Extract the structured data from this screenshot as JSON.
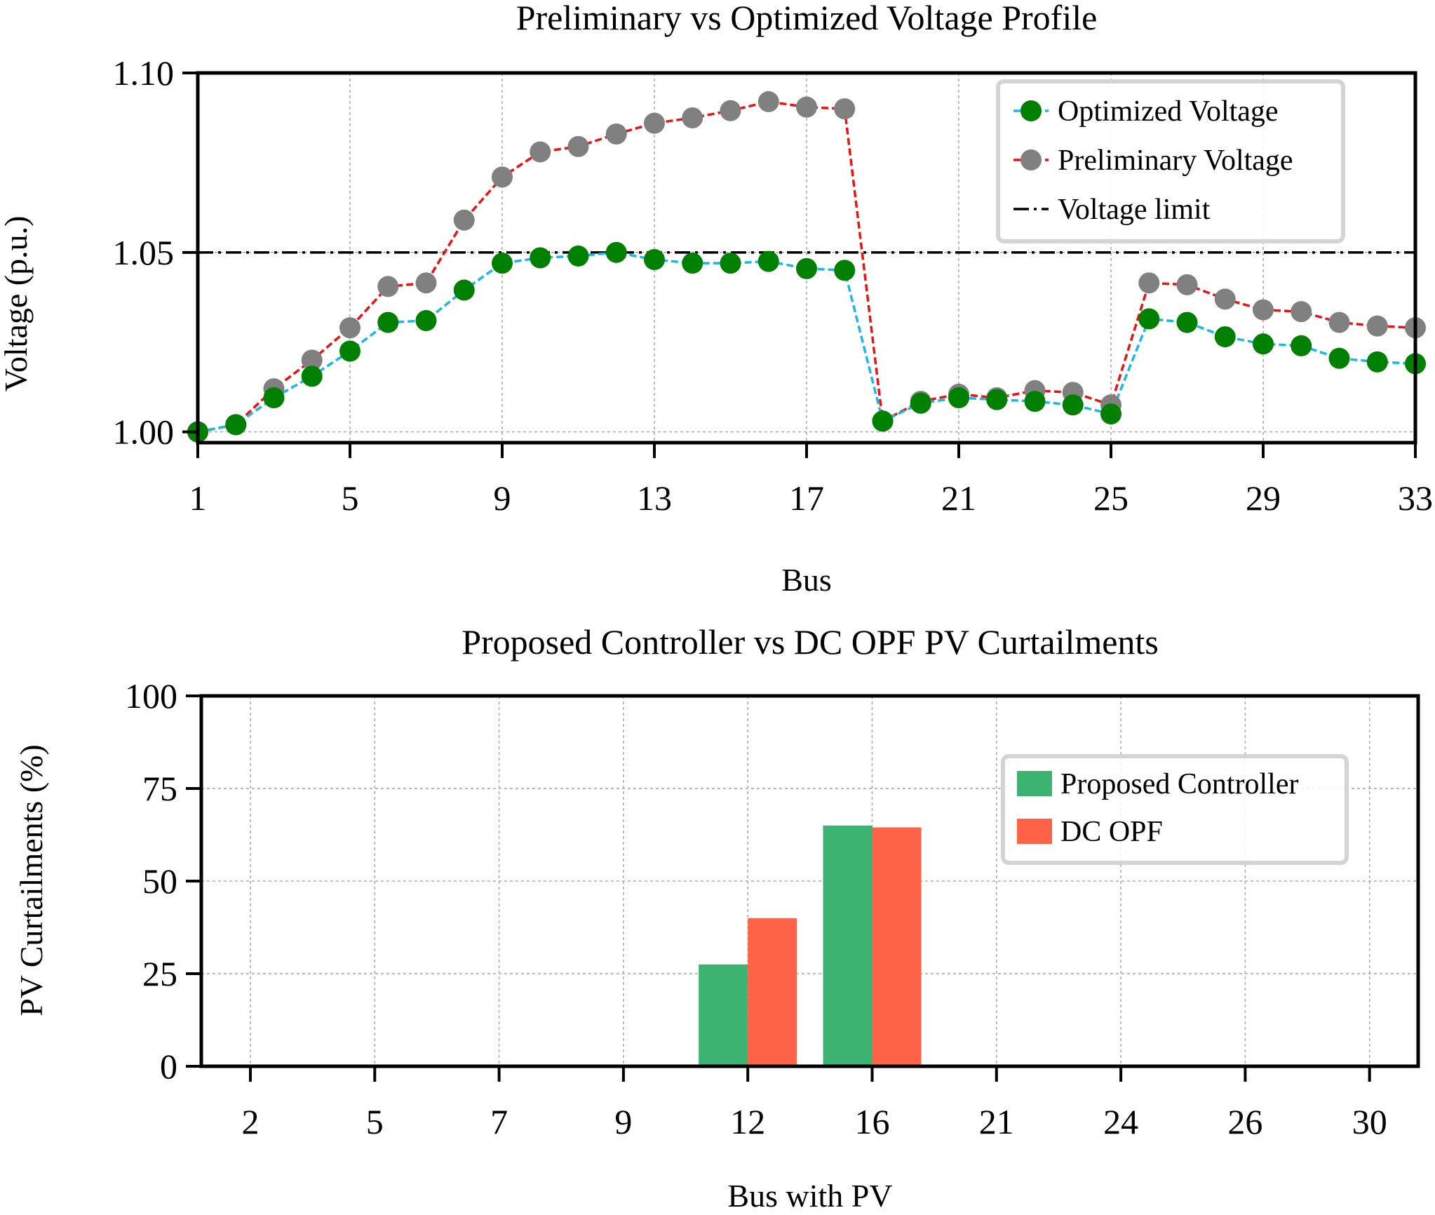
{
  "colors": {
    "optimized": "#008000",
    "optimized_line": "#1ab8e8",
    "preliminary": "#808080",
    "preliminary_line": "#ee1111",
    "limit": "#000000",
    "proposed": "#3cb371",
    "dcopf": "#ff6347",
    "grid": "#a8a8a8"
  },
  "chart_data": [
    {
      "type": "line",
      "title": "Preliminary vs Optimized Voltage Profile",
      "xlabel": "Bus",
      "ylabel": "Voltage (p.u.)",
      "xlim": [
        1,
        33
      ],
      "ylim": [
        0.997,
        1.1
      ],
      "x_ticks": [
        1,
        5,
        9,
        13,
        17,
        21,
        25,
        29,
        33
      ],
      "y_ticks": [
        1.0,
        1.05,
        1.1
      ],
      "y_tick_labels": [
        "1.00",
        "1.05",
        "1.10"
      ],
      "grid": true,
      "legend_position": "top-right",
      "x": [
        1,
        2,
        3,
        4,
        5,
        6,
        7,
        8,
        9,
        10,
        11,
        12,
        13,
        14,
        15,
        16,
        17,
        18,
        19,
        20,
        21,
        22,
        23,
        24,
        25,
        26,
        27,
        28,
        29,
        30,
        31,
        32,
        33
      ],
      "series": [
        {
          "name": "Optimized Voltage",
          "values": [
            1.0,
            1.002,
            1.0095,
            1.0155,
            1.0225,
            1.0305,
            1.031,
            1.0395,
            1.047,
            1.0485,
            1.049,
            1.05,
            1.048,
            1.047,
            1.047,
            1.0475,
            1.0455,
            1.045,
            1.003,
            1.008,
            1.0095,
            1.009,
            1.0085,
            1.0075,
            1.005,
            1.0315,
            1.0305,
            1.0265,
            1.0245,
            1.024,
            1.0205,
            1.0195,
            1.019
          ]
        },
        {
          "name": "Preliminary Voltage",
          "values": [
            1.0,
            1.002,
            1.012,
            1.02,
            1.029,
            1.0405,
            1.0415,
            1.059,
            1.071,
            1.078,
            1.0795,
            1.083,
            1.086,
            1.0875,
            1.0895,
            1.092,
            1.0905,
            1.09,
            1.003,
            1.0085,
            1.0105,
            1.0095,
            1.0115,
            1.011,
            1.0075,
            1.0415,
            1.041,
            1.037,
            1.034,
            1.0335,
            1.0305,
            1.0295,
            1.029
          ]
        }
      ],
      "reference_lines": [
        {
          "name": "Voltage limit",
          "y": 1.05
        }
      ]
    },
    {
      "type": "bar",
      "title": "Proposed Controller vs DC OPF PV Curtailments",
      "xlabel": "Bus with PV",
      "ylabel": "PV Curtailments (%)",
      "ylim": [
        0,
        100
      ],
      "y_ticks": [
        0,
        25,
        50,
        75,
        100
      ],
      "categories": [
        "2",
        "5",
        "7",
        "9",
        "12",
        "16",
        "21",
        "24",
        "26",
        "30"
      ],
      "grid": true,
      "legend_position": "upper-right",
      "series": [
        {
          "name": "Proposed Controller",
          "values": [
            0,
            0,
            0,
            0,
            27.5,
            65,
            0,
            0,
            0,
            0
          ]
        },
        {
          "name": "DC OPF",
          "values": [
            0,
            0,
            0,
            0,
            40,
            64.5,
            0,
            0,
            0,
            0
          ]
        }
      ]
    }
  ]
}
